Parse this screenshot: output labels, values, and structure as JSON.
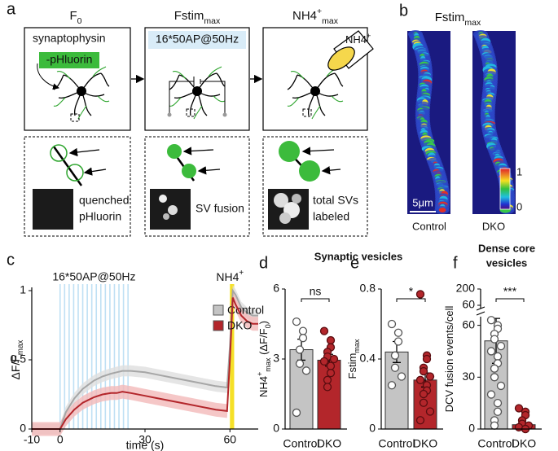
{
  "figure": {
    "panel_labels": [
      "a",
      "b",
      "c",
      "d",
      "e",
      "f"
    ],
    "a": {
      "headers": [
        [
          {
            "text": "F"
          },
          {
            "text": "0",
            "pos": "sub"
          }
        ],
        [
          {
            "text": "Fstim"
          },
          {
            "text": "max",
            "pos": "sub"
          }
        ],
        [
          {
            "text": "NH4"
          },
          {
            "text": "+",
            "pos": "sup"
          },
          {
            "text": "max",
            "pos": "sub"
          }
        ]
      ],
      "sensor": [
        "synaptophysin",
        "-pHluorin"
      ],
      "stimulus": "16*50AP@50Hz",
      "nh4": [
        {
          "text": "NH4"
        },
        {
          "text": "+",
          "pos": "sup"
        }
      ],
      "captions": [
        [
          "quenched",
          "pHluorin"
        ],
        [
          "SV fusion"
        ],
        [
          "total SVs",
          "labeled"
        ]
      ]
    },
    "b": {
      "header": [
        {
          "text": "Fstim"
        },
        {
          "text": "max",
          "pos": "sub"
        }
      ],
      "colorbar": [
        "1",
        "0"
      ],
      "scale": "5μm",
      "labels": [
        "Control",
        "DKO"
      ]
    },
    "group_titles": [
      "Synaptic vesicles",
      "Dense core",
      "vesicles"
    ]
  },
  "chart_data": [
    {
      "type": "line",
      "xlabel": "time (s)",
      "ylabel": [
        {
          "text": "ΔF/F"
        },
        {
          "text": "max",
          "pos": "sub"
        }
      ],
      "x": [
        -10,
        -5,
        0,
        2,
        5,
        8,
        10,
        12,
        15,
        18,
        20,
        22,
        25,
        30,
        35,
        40,
        45,
        50,
        55,
        59,
        60,
        61,
        62,
        64,
        66,
        68,
        70
      ],
      "series": [
        {
          "name": "Control",
          "color": "#a6a6a6",
          "band_color": "#dedede",
          "error": 0.04,
          "values": [
            0,
            0,
            0,
            0.12,
            0.22,
            0.29,
            0.32,
            0.35,
            0.38,
            0.4,
            0.41,
            0.42,
            0.42,
            0.41,
            0.39,
            0.37,
            0.35,
            0.33,
            0.31,
            0.3,
            0.6,
            1.0,
            0.97,
            0.88,
            0.84,
            0.82,
            0.82
          ]
        },
        {
          "name": "DKO",
          "color": "#b3262b",
          "band_color": "#f2b9b9",
          "error": 0.05,
          "values": [
            0,
            0,
            0,
            0.07,
            0.14,
            0.19,
            0.21,
            0.23,
            0.25,
            0.26,
            0.26,
            0.27,
            0.26,
            0.24,
            0.22,
            0.2,
            0.18,
            0.16,
            0.14,
            0.13,
            0.5,
            0.95,
            0.9,
            0.82,
            0.78,
            0.76,
            0.76
          ]
        }
      ],
      "xlim": [
        -10,
        70
      ],
      "xticks": [
        -10,
        0,
        30,
        60
      ],
      "ylim": [
        0,
        1
      ],
      "yticks": [
        0,
        0.5,
        1
      ],
      "stim_label": "16*50AP@50Hz",
      "stim_times": [
        0,
        1.6,
        3.2,
        4.8,
        6.4,
        8,
        9.6,
        11.2,
        12.8,
        14.4,
        16,
        17.6,
        19.2,
        20.8,
        22.4,
        24
      ],
      "nh4_label": [
        {
          "text": "NH4"
        },
        {
          "text": "+",
          "pos": "sup"
        }
      ],
      "nh4_span": [
        60,
        61.5
      ],
      "legend": "upper right"
    },
    {
      "type": "bar",
      "ylabel": [
        {
          "text": "NH4"
        },
        {
          "text": "+",
          "pos": "sup"
        },
        {
          "text": "max",
          "pos": "sub"
        },
        {
          "text": " (ΔF/F"
        },
        {
          "text": "0",
          "pos": "sub"
        },
        {
          "text": ")"
        }
      ],
      "categories": [
        "Control",
        "DKO"
      ],
      "colors": [
        "#c4c4c4",
        "#b3262b"
      ],
      "values": [
        3.4,
        2.95
      ],
      "errors": [
        0.45,
        0.25
      ],
      "points": [
        [
          4.6,
          4.2,
          3.9,
          3.4,
          2.8,
          2.5,
          0.7
        ],
        [
          4.2,
          3.8,
          3.5,
          3.3,
          3.1,
          3.0,
          2.9,
          2.7,
          2.4,
          2.1,
          1.8
        ]
      ],
      "ylim": [
        0,
        6
      ],
      "yticks": [
        0,
        3,
        6
      ],
      "significance": "ns"
    },
    {
      "type": "bar",
      "ylabel": [
        {
          "text": "Fstim"
        },
        {
          "text": "max",
          "pos": "sub"
        }
      ],
      "categories": [
        "Control",
        "DKO"
      ],
      "colors": [
        "#c4c4c4",
        "#b3262b"
      ],
      "values": [
        0.44,
        0.28
      ],
      "errors": [
        0.06,
        0.04
      ],
      "points": [
        [
          0.6,
          0.55,
          0.5,
          0.42,
          0.35,
          0.3,
          0.25
        ],
        [
          0.77,
          0.42,
          0.4,
          0.35,
          0.33,
          0.3,
          0.28,
          0.25,
          0.22,
          0.2,
          0.15,
          0.1,
          0.05
        ]
      ],
      "ylim": [
        0,
        0.8
      ],
      "yticks": [
        0,
        0.4,
        0.8
      ],
      "significance": "*"
    },
    {
      "type": "bar",
      "ylabel": [
        {
          "text": "DCV fusion events/cell"
        }
      ],
      "categories": [
        "Control",
        "DKO"
      ],
      "colors": [
        "#c4c4c4",
        "#b3262b"
      ],
      "values": [
        51,
        2.5
      ],
      "errors": [
        13,
        1.2
      ],
      "points": [
        [
          63,
          60,
          58,
          55,
          52,
          48,
          45,
          42,
          38,
          35,
          30,
          25,
          20,
          15,
          10,
          5,
          2
        ],
        [
          12,
          10,
          8,
          5,
          3,
          2,
          1,
          0,
          0
        ]
      ],
      "ylim": [
        0,
        65
      ],
      "yticks": [
        0,
        30,
        60
      ],
      "ylim_upper": [
        60,
        200
      ],
      "yticks_upper": [
        60,
        200
      ],
      "significance": "***"
    }
  ]
}
